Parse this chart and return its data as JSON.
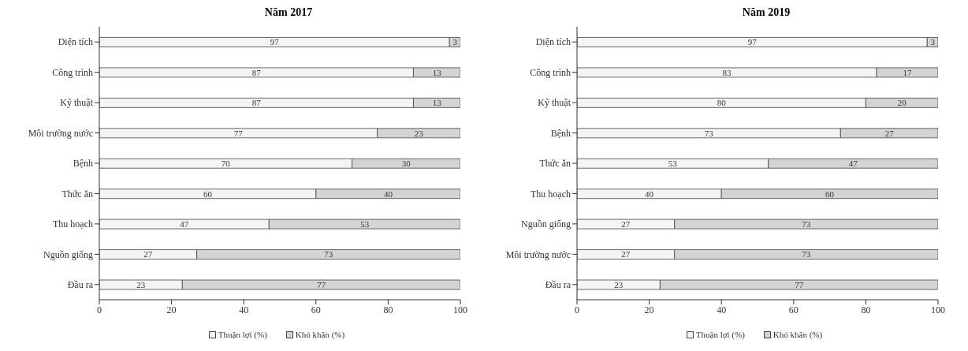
{
  "chart_data": [
    {
      "type": "bar",
      "orientation": "horizontal",
      "stacked": true,
      "title": "Năm 2017",
      "categories": [
        "Diện tích",
        "Công trình",
        "Kỹ thuật",
        "Môi trường nước",
        "Bệnh",
        "Thức ăn",
        "Thu hoạch",
        "Nguồn giống",
        "Đầu ra"
      ],
      "series": [
        {
          "name": "Thuận lợi (%)",
          "color": "#f4f4f4",
          "values": [
            97,
            87,
            87,
            77,
            70,
            60,
            47,
            27,
            23
          ]
        },
        {
          "name": "Khó khăn (%)",
          "color": "#d4d4d4",
          "values": [
            3,
            13,
            13,
            23,
            30,
            40,
            53,
            73,
            77
          ]
        }
      ],
      "xlim": [
        0,
        100
      ],
      "xticks": [
        0,
        20,
        40,
        60,
        80,
        100
      ],
      "data_labels": true,
      "legend": "bottom",
      "grid": false
    },
    {
      "type": "bar",
      "orientation": "horizontal",
      "stacked": true,
      "title": "Năm 2019",
      "categories": [
        "Diện tích",
        "Công trình",
        "Kỹ thuật",
        "Bệnh",
        "Thức ăn",
        "Thu hoạch",
        "Nguồn giống",
        "Môi trường nước",
        "Đầu ra"
      ],
      "series": [
        {
          "name": "Thuận lợi (%)",
          "color": "#f4f4f4",
          "values": [
            97,
            83,
            80,
            73,
            53,
            40,
            27,
            27,
            23
          ]
        },
        {
          "name": "Khó khăn (%)",
          "color": "#d4d4d4",
          "values": [
            3,
            17,
            20,
            27,
            47,
            60,
            73,
            73,
            77
          ]
        }
      ],
      "xlim": [
        0,
        100
      ],
      "xticks": [
        0,
        20,
        40,
        60,
        80,
        100
      ],
      "data_labels": true,
      "legend": "bottom",
      "grid": false
    }
  ]
}
